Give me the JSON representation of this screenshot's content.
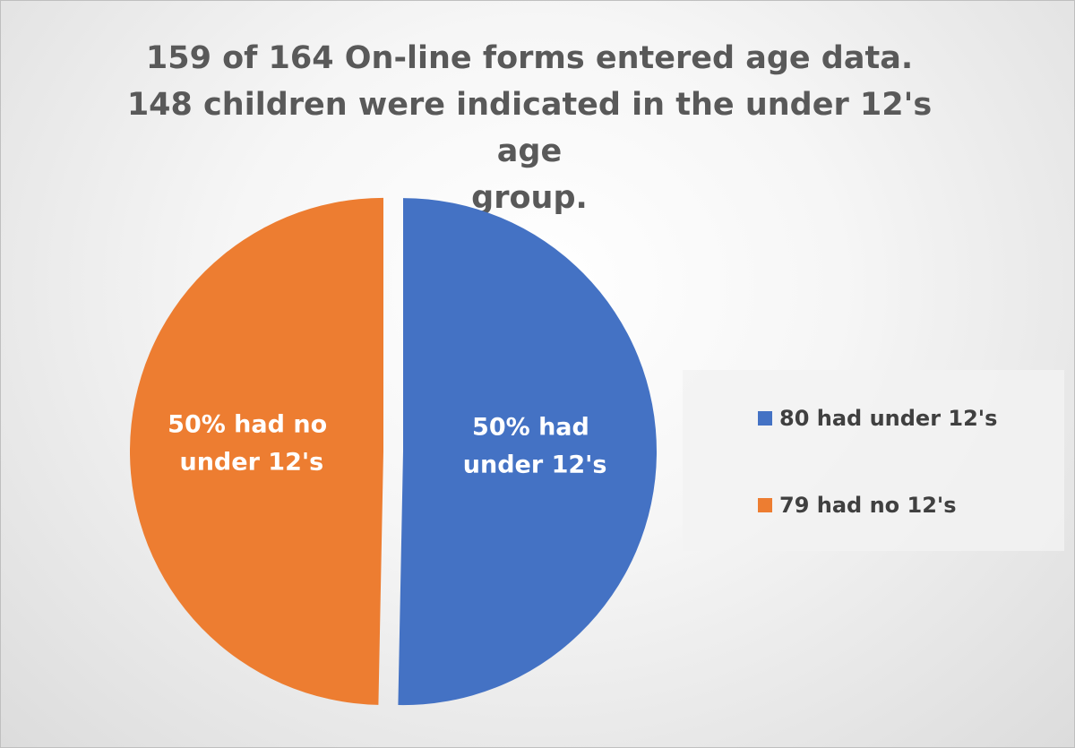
{
  "chart_data": {
    "type": "pie",
    "title_lines": [
      "159 of 164 On-line forms entered age data.",
      "148 children were indicated in the under 12's age",
      "group."
    ],
    "slices": [
      {
        "legend": "80 had under 12's",
        "value": 80,
        "label_lines": [
          "50% had",
          "under 12's"
        ],
        "color": "#4472C4"
      },
      {
        "legend": "79 had no 12's",
        "value": 79,
        "label_lines": [
          "50% had no",
          "under 12's"
        ],
        "color": "#ED7D31"
      }
    ],
    "legend_position": "right"
  }
}
